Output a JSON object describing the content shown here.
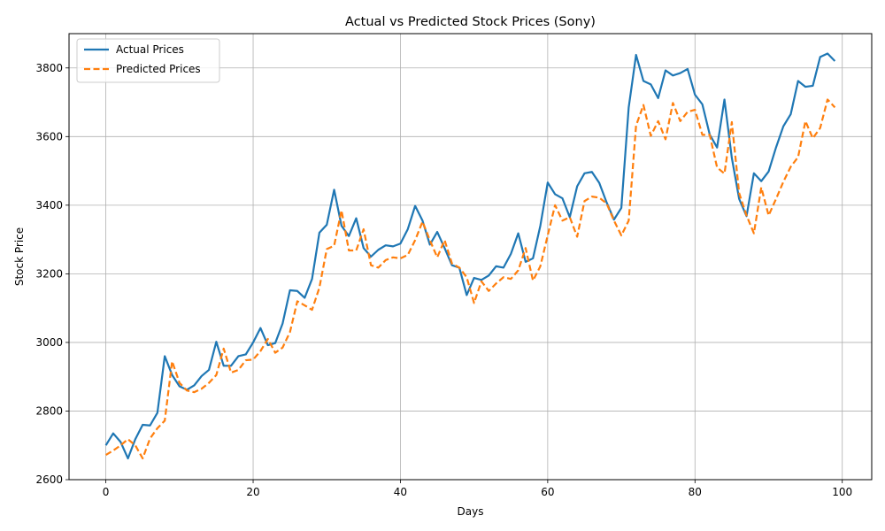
{
  "chart_data": {
    "type": "line",
    "title": "Actual vs Predicted Stock Prices (Sony)",
    "xlabel": "Days",
    "ylabel": "Stock Price",
    "xlim": [
      -5,
      104
    ],
    "ylim": [
      2600,
      3900
    ],
    "xticks": [
      0,
      20,
      40,
      60,
      80,
      100
    ],
    "yticks": [
      2600,
      2800,
      3000,
      3200,
      3400,
      3600,
      3800
    ],
    "grid": true,
    "legend_position": "top-left",
    "x": [
      0,
      1,
      2,
      3,
      4,
      5,
      6,
      7,
      8,
      9,
      10,
      11,
      12,
      13,
      14,
      15,
      16,
      17,
      18,
      19,
      20,
      21,
      22,
      23,
      24,
      25,
      26,
      27,
      28,
      29,
      30,
      31,
      32,
      33,
      34,
      35,
      36,
      37,
      38,
      39,
      40,
      41,
      42,
      43,
      44,
      45,
      46,
      47,
      48,
      49,
      50,
      51,
      52,
      53,
      54,
      55,
      56,
      57,
      58,
      59,
      60,
      61,
      62,
      63,
      64,
      65,
      66,
      67,
      68,
      69,
      70,
      71,
      72,
      73,
      74,
      75,
      76,
      77,
      78,
      79,
      80,
      81,
      82,
      83,
      84,
      85,
      86,
      87,
      88,
      89,
      90,
      91,
      92,
      93,
      94,
      95,
      96,
      97,
      98,
      99
    ],
    "series": [
      {
        "name": "Actual Prices",
        "color": "#1f77b4",
        "style": "solid",
        "values": [
          2700,
          2735,
          2710,
          2662,
          2718,
          2760,
          2758,
          2795,
          2960,
          2905,
          2872,
          2862,
          2875,
          2902,
          2920,
          3002,
          2932,
          2932,
          2960,
          2965,
          3000,
          3042,
          2992,
          2998,
          3055,
          3152,
          3150,
          3130,
          3185,
          3320,
          3343,
          3445,
          3340,
          3310,
          3362,
          3275,
          3250,
          3270,
          3283,
          3280,
          3288,
          3330,
          3398,
          3355,
          3285,
          3322,
          3275,
          3225,
          3218,
          3138,
          3188,
          3182,
          3195,
          3222,
          3218,
          3258,
          3318,
          3235,
          3245,
          3340,
          3466,
          3432,
          3420,
          3365,
          3455,
          3493,
          3497,
          3465,
          3408,
          3358,
          3392,
          3685,
          3838,
          3762,
          3752,
          3712,
          3793,
          3778,
          3785,
          3797,
          3722,
          3694,
          3606,
          3568,
          3708,
          3538,
          3418,
          3368,
          3493,
          3470,
          3498,
          3568,
          3630,
          3665,
          3762,
          3745,
          3748,
          3832,
          3842,
          3820
        ]
      },
      {
        "name": "Predicted Prices",
        "color": "#ff7f0e",
        "style": "dashed",
        "values": [
          2672,
          2685,
          2700,
          2718,
          2700,
          2662,
          2720,
          2750,
          2772,
          2945,
          2882,
          2860,
          2855,
          2865,
          2882,
          2905,
          2982,
          2912,
          2920,
          2948,
          2950,
          2975,
          3010,
          2970,
          2985,
          3030,
          3120,
          3108,
          3095,
          3160,
          3272,
          3282,
          3385,
          3268,
          3268,
          3330,
          3225,
          3218,
          3240,
          3248,
          3245,
          3255,
          3298,
          3352,
          3298,
          3248,
          3298,
          3230,
          3218,
          3190,
          3115,
          3178,
          3150,
          3172,
          3190,
          3185,
          3210,
          3275,
          3180,
          3222,
          3312,
          3400,
          3355,
          3365,
          3308,
          3412,
          3425,
          3422,
          3405,
          3355,
          3312,
          3355,
          3632,
          3692,
          3602,
          3645,
          3592,
          3698,
          3645,
          3672,
          3678,
          3605,
          3605,
          3510,
          3492,
          3642,
          3435,
          3370,
          3318,
          3452,
          3370,
          3418,
          3468,
          3512,
          3540,
          3645,
          3595,
          3625,
          3708,
          3685
        ]
      }
    ]
  }
}
